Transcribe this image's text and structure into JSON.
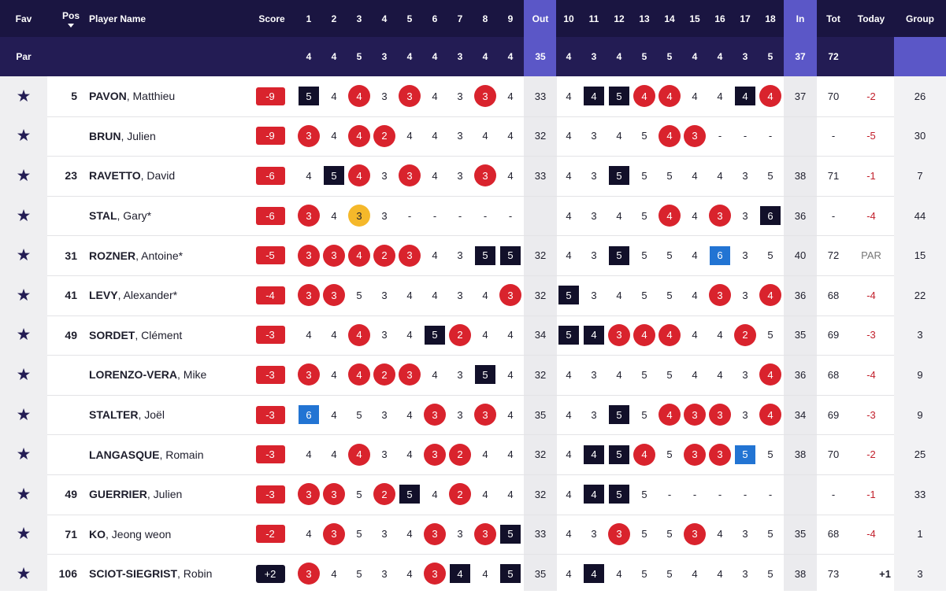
{
  "header": {
    "fav": "Fav",
    "pos": "Pos",
    "player": "Player Name",
    "score": "Score",
    "holes_out": [
      "1",
      "2",
      "3",
      "4",
      "5",
      "6",
      "7",
      "8",
      "9"
    ],
    "out": "Out",
    "holes_in": [
      "10",
      "11",
      "12",
      "13",
      "14",
      "15",
      "16",
      "17",
      "18"
    ],
    "in": "In",
    "tot": "Tot",
    "today": "Today",
    "group": "Group"
  },
  "par": {
    "label": "Par",
    "out": [
      "4",
      "4",
      "5",
      "3",
      "4",
      "4",
      "3",
      "4",
      "4"
    ],
    "out_total": "35",
    "in": [
      "4",
      "3",
      "4",
      "5",
      "5",
      "4",
      "4",
      "3",
      "5"
    ],
    "in_total": "37",
    "total": "72"
  },
  "colors": {
    "header_bg": "#1a1541",
    "par_bg": "#231c54",
    "highlight": "#5b57c7",
    "birdie": "#d9232d",
    "bogey": "#12102a",
    "double_bogey": "#2274d3",
    "eagle": "#f5b82a"
  },
  "icons": {
    "favorite": "star-icon",
    "sort": "sort-down-icon"
  },
  "players": [
    {
      "pos": "5",
      "last": "PAVON",
      "first": ", Matthieu",
      "score": "-9",
      "front": [
        "5",
        "4",
        "4",
        "3",
        "3",
        "4",
        "3",
        "3",
        "4"
      ],
      "out": "33",
      "back": [
        "4",
        "4",
        "5",
        "4",
        "4",
        "4",
        "4",
        "4",
        "4"
      ],
      "in": "37",
      "tot": "70",
      "today": "-2",
      "group": "26"
    },
    {
      "pos": "",
      "last": "BRUN",
      "first": ", Julien",
      "score": "-9",
      "front": [
        "3",
        "4",
        "4",
        "2",
        "4",
        "4",
        "3",
        "4",
        "4"
      ],
      "out": "32",
      "back": [
        "4",
        "3",
        "4",
        "5",
        "4",
        "3",
        "-",
        "-",
        "-"
      ],
      "in": "",
      "tot": "-",
      "today": "-5",
      "group": "30"
    },
    {
      "pos": "23",
      "last": "RAVETTO",
      "first": ", David",
      "score": "-6",
      "front": [
        "4",
        "5",
        "4",
        "3",
        "3",
        "4",
        "3",
        "3",
        "4"
      ],
      "out": "33",
      "back": [
        "4",
        "3",
        "5",
        "5",
        "5",
        "4",
        "4",
        "3",
        "5"
      ],
      "in": "38",
      "tot": "71",
      "today": "-1",
      "group": "7"
    },
    {
      "pos": "",
      "last": "STAL",
      "first": ", Gary*",
      "score": "-6",
      "front": [
        "3",
        "4",
        "3",
        "3",
        "-",
        "-",
        "-",
        "-",
        "-"
      ],
      "out": "",
      "back": [
        "4",
        "3",
        "4",
        "5",
        "4",
        "4",
        "3",
        "3",
        "6"
      ],
      "in": "36",
      "tot": "-",
      "today": "-4",
      "group": "44"
    },
    {
      "pos": "31",
      "last": "ROZNER",
      "first": ", Antoine*",
      "score": "-5",
      "front": [
        "3",
        "3",
        "4",
        "2",
        "3",
        "4",
        "3",
        "5",
        "5"
      ],
      "out": "32",
      "back": [
        "4",
        "3",
        "5",
        "5",
        "5",
        "4",
        "6",
        "3",
        "5"
      ],
      "in": "40",
      "tot": "72",
      "today": "PAR",
      "group": "15"
    },
    {
      "pos": "41",
      "last": "LEVY",
      "first": ", Alexander*",
      "score": "-4",
      "front": [
        "3",
        "3",
        "5",
        "3",
        "4",
        "4",
        "3",
        "4",
        "3"
      ],
      "out": "32",
      "back": [
        "5",
        "3",
        "4",
        "5",
        "5",
        "4",
        "3",
        "3",
        "4"
      ],
      "in": "36",
      "tot": "68",
      "today": "-4",
      "group": "22"
    },
    {
      "pos": "49",
      "last": "SORDET",
      "first": ", Clément",
      "score": "-3",
      "front": [
        "4",
        "4",
        "4",
        "3",
        "4",
        "5",
        "2",
        "4",
        "4"
      ],
      "out": "34",
      "back": [
        "5",
        "4",
        "3",
        "4",
        "4",
        "4",
        "4",
        "2",
        "5"
      ],
      "in": "35",
      "tot": "69",
      "today": "-3",
      "group": "3"
    },
    {
      "pos": "",
      "last": "LORENZO-VERA",
      "first": ", Mike",
      "score": "-3",
      "front": [
        "3",
        "4",
        "4",
        "2",
        "3",
        "4",
        "3",
        "5",
        "4"
      ],
      "out": "32",
      "back": [
        "4",
        "3",
        "4",
        "5",
        "5",
        "4",
        "4",
        "3",
        "4"
      ],
      "in": "36",
      "tot": "68",
      "today": "-4",
      "group": "9"
    },
    {
      "pos": "",
      "last": "STALTER",
      "first": ", Joël",
      "score": "-3",
      "front": [
        "6",
        "4",
        "5",
        "3",
        "4",
        "3",
        "3",
        "3",
        "4"
      ],
      "out": "35",
      "back": [
        "4",
        "3",
        "5",
        "5",
        "4",
        "3",
        "3",
        "3",
        "4"
      ],
      "in": "34",
      "tot": "69",
      "today": "-3",
      "group": "9"
    },
    {
      "pos": "",
      "last": "LANGASQUE",
      "first": ", Romain",
      "score": "-3",
      "front": [
        "4",
        "4",
        "4",
        "3",
        "4",
        "3",
        "2",
        "4",
        "4"
      ],
      "out": "32",
      "back": [
        "4",
        "4",
        "5",
        "4",
        "5",
        "3",
        "3",
        "5",
        "5"
      ],
      "in": "38",
      "tot": "70",
      "today": "-2",
      "group": "25"
    },
    {
      "pos": "49",
      "last": "GUERRIER",
      "first": ", Julien",
      "score": "-3",
      "front": [
        "3",
        "3",
        "5",
        "2",
        "5",
        "4",
        "2",
        "4",
        "4"
      ],
      "out": "32",
      "back": [
        "4",
        "4",
        "5",
        "5",
        "-",
        "-",
        "-",
        "-",
        "-"
      ],
      "in": "",
      "tot": "-",
      "today": "-1",
      "group": "33"
    },
    {
      "pos": "71",
      "last": "KO",
      "first": ", Jeong weon",
      "score": "-2",
      "front": [
        "4",
        "3",
        "5",
        "3",
        "4",
        "3",
        "3",
        "3",
        "5"
      ],
      "out": "33",
      "back": [
        "4",
        "3",
        "3",
        "5",
        "5",
        "3",
        "4",
        "3",
        "5"
      ],
      "in": "35",
      "tot": "68",
      "today": "-4",
      "group": "1"
    },
    {
      "pos": "106",
      "last": "SCIOT-SIEGRIST",
      "first": ", Robin",
      "score": "+2",
      "front": [
        "3",
        "4",
        "5",
        "3",
        "4",
        "3",
        "4",
        "4",
        "5"
      ],
      "out": "35",
      "back": [
        "4",
        "4",
        "4",
        "5",
        "5",
        "4",
        "4",
        "3",
        "5"
      ],
      "in": "38",
      "tot": "73",
      "today": "+1",
      "group": "3"
    }
  ]
}
